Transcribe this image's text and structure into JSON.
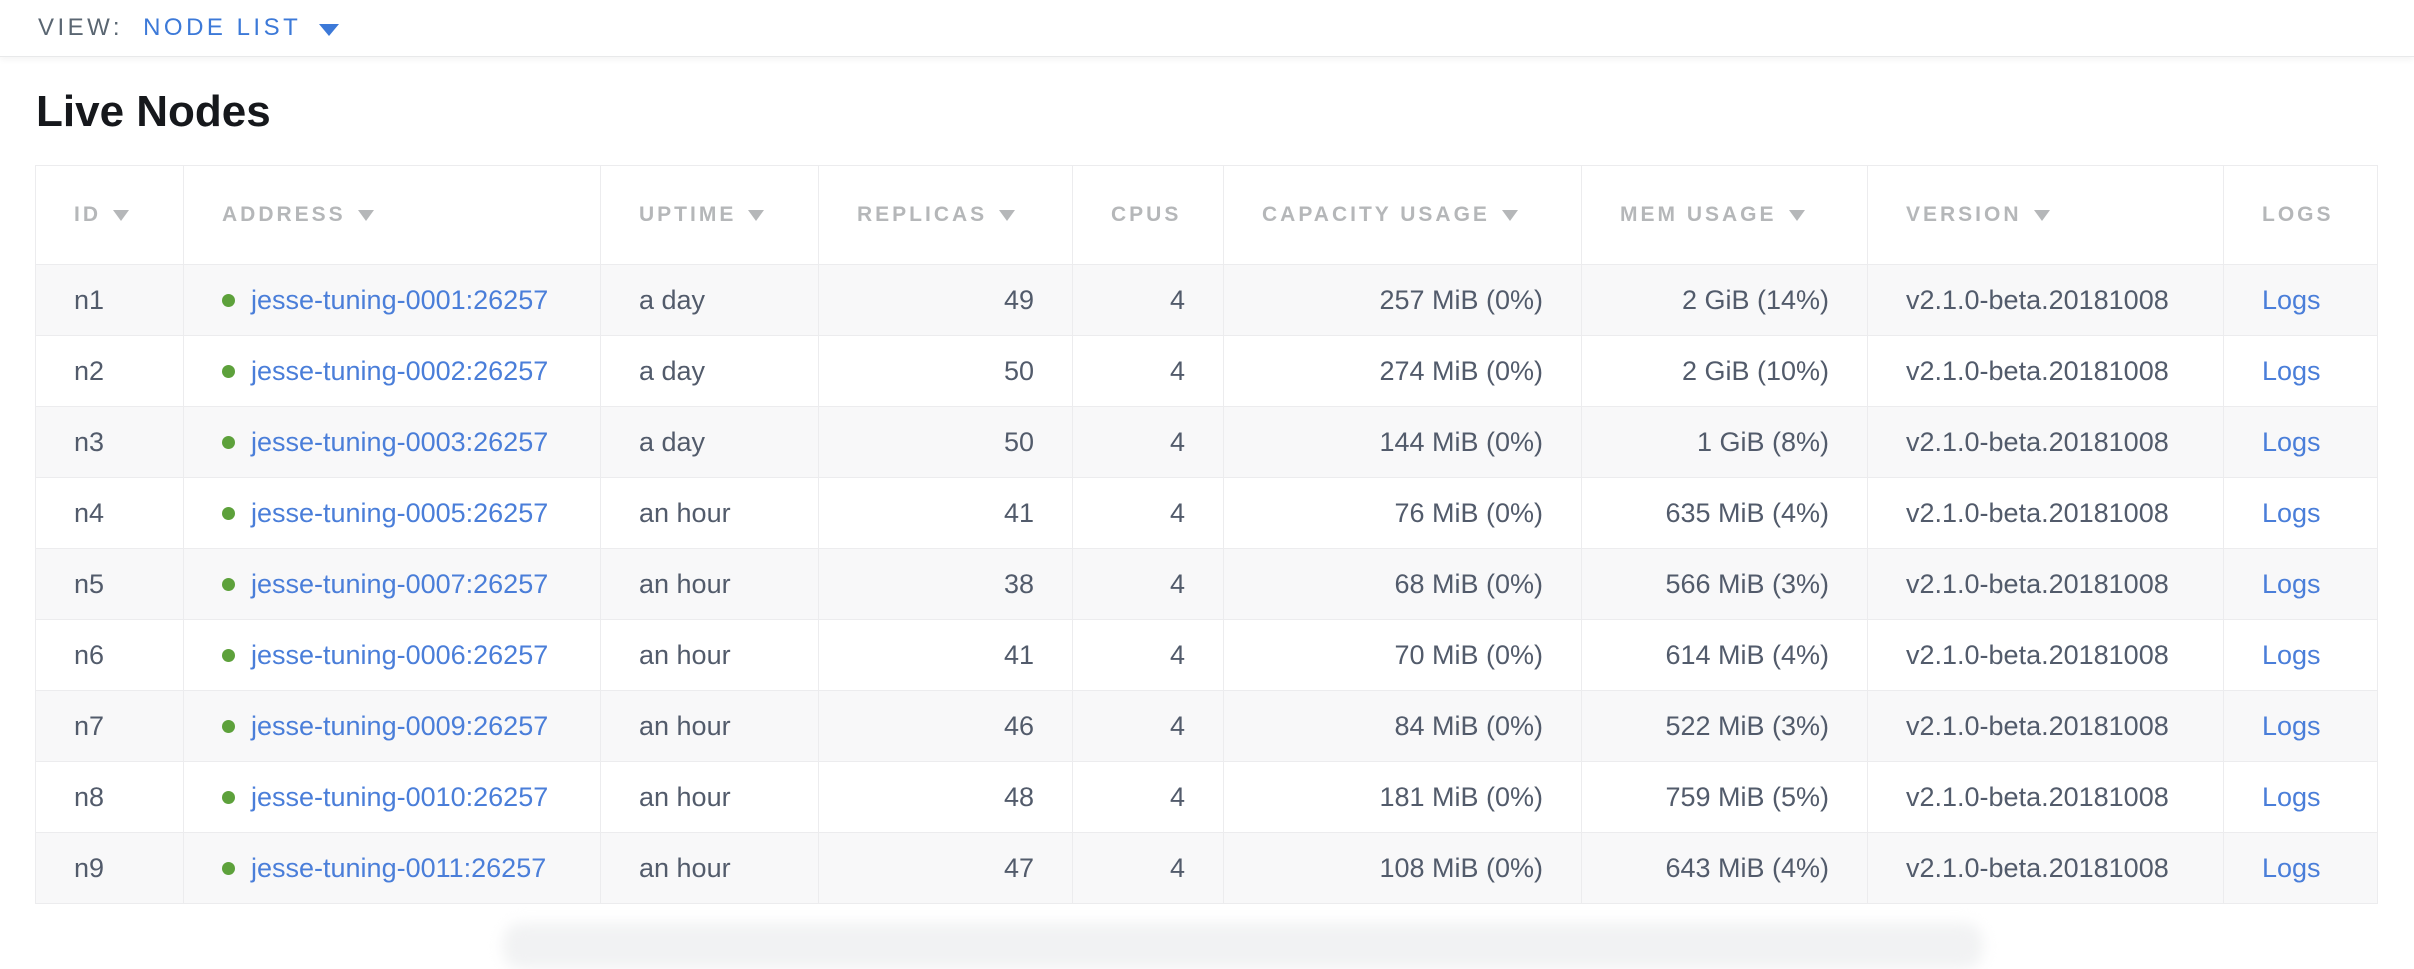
{
  "colors": {
    "accent-blue": "#3c79d8",
    "link-blue": "#4a7ed9",
    "status-green": "#5da13b",
    "header-gray": "#b5b7b9",
    "cell-text": "#525b6b",
    "view-label-gray": "#5a6672",
    "row-stripe": "#f8f8f9",
    "table-border": "#ececee"
  },
  "toolbar": {
    "view_label": "VIEW:",
    "view_value": "NODE LIST",
    "dropdown_icon": "caret-down-icon"
  },
  "page": {
    "title": "Live Nodes"
  },
  "table": {
    "columns": [
      {
        "key": "id",
        "label": "ID",
        "sort_arrow": true
      },
      {
        "key": "address",
        "label": "ADDRESS",
        "sort_arrow": true
      },
      {
        "key": "uptime",
        "label": "UPTIME",
        "sort_arrow": true
      },
      {
        "key": "replicas",
        "label": "REPLICAS",
        "sort_arrow": true
      },
      {
        "key": "cpus",
        "label": "CPUS",
        "sort_arrow": false
      },
      {
        "key": "capacity",
        "label": "CAPACITY USAGE",
        "sort_arrow": true
      },
      {
        "key": "mem",
        "label": "MEM USAGE",
        "sort_arrow": true
      },
      {
        "key": "version",
        "label": "VERSION",
        "sort_arrow": true
      },
      {
        "key": "logs",
        "label": "LOGS",
        "sort_arrow": false
      }
    ],
    "rows": [
      {
        "id": "n1",
        "status": "healthy",
        "address": "jesse-tuning-0001:26257",
        "uptime": "a day",
        "replicas": "49",
        "cpus": "4",
        "capacity": "257 MiB (0%)",
        "mem": "2 GiB (14%)",
        "version": "v2.1.0-beta.20181008",
        "logs": "Logs"
      },
      {
        "id": "n2",
        "status": "healthy",
        "address": "jesse-tuning-0002:26257",
        "uptime": "a day",
        "replicas": "50",
        "cpus": "4",
        "capacity": "274 MiB (0%)",
        "mem": "2 GiB (10%)",
        "version": "v2.1.0-beta.20181008",
        "logs": "Logs"
      },
      {
        "id": "n3",
        "status": "healthy",
        "address": "jesse-tuning-0003:26257",
        "uptime": "a day",
        "replicas": "50",
        "cpus": "4",
        "capacity": "144 MiB (0%)",
        "mem": "1 GiB (8%)",
        "version": "v2.1.0-beta.20181008",
        "logs": "Logs"
      },
      {
        "id": "n4",
        "status": "healthy",
        "address": "jesse-tuning-0005:26257",
        "uptime": "an hour",
        "replicas": "41",
        "cpus": "4",
        "capacity": "76 MiB (0%)",
        "mem": "635 MiB (4%)",
        "version": "v2.1.0-beta.20181008",
        "logs": "Logs"
      },
      {
        "id": "n5",
        "status": "healthy",
        "address": "jesse-tuning-0007:26257",
        "uptime": "an hour",
        "replicas": "38",
        "cpus": "4",
        "capacity": "68 MiB (0%)",
        "mem": "566 MiB (3%)",
        "version": "v2.1.0-beta.20181008",
        "logs": "Logs"
      },
      {
        "id": "n6",
        "status": "healthy",
        "address": "jesse-tuning-0006:26257",
        "uptime": "an hour",
        "replicas": "41",
        "cpus": "4",
        "capacity": "70 MiB (0%)",
        "mem": "614 MiB (4%)",
        "version": "v2.1.0-beta.20181008",
        "logs": "Logs"
      },
      {
        "id": "n7",
        "status": "healthy",
        "address": "jesse-tuning-0009:26257",
        "uptime": "an hour",
        "replicas": "46",
        "cpus": "4",
        "capacity": "84 MiB (0%)",
        "mem": "522 MiB (3%)",
        "version": "v2.1.0-beta.20181008",
        "logs": "Logs"
      },
      {
        "id": "n8",
        "status": "healthy",
        "address": "jesse-tuning-0010:26257",
        "uptime": "an hour",
        "replicas": "48",
        "cpus": "4",
        "capacity": "181 MiB (0%)",
        "mem": "759 MiB (5%)",
        "version": "v2.1.0-beta.20181008",
        "logs": "Logs"
      },
      {
        "id": "n9",
        "status": "healthy",
        "address": "jesse-tuning-0011:26257",
        "uptime": "an hour",
        "replicas": "47",
        "cpus": "4",
        "capacity": "108 MiB (0%)",
        "mem": "643 MiB (4%)",
        "version": "v2.1.0-beta.20181008",
        "logs": "Logs"
      }
    ]
  }
}
